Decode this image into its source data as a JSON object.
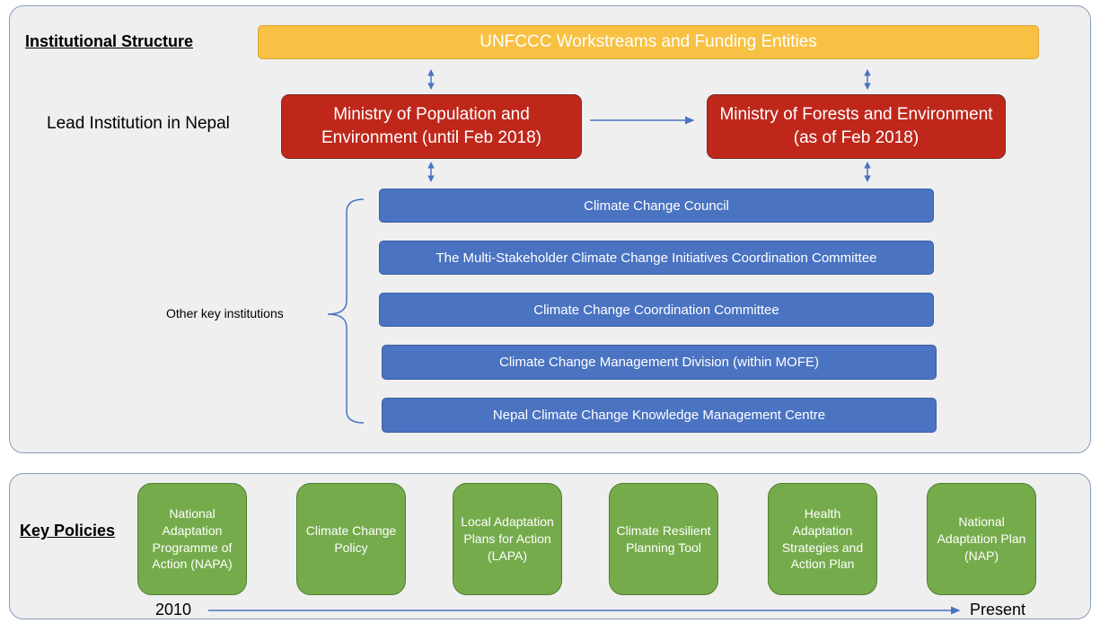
{
  "header": {
    "title": "Institutional Structure"
  },
  "top_bar": "UNFCCC Workstreams and Funding Entities",
  "lead_label": "Lead Institution in Nepal",
  "ministries": [
    "Ministry of Population and Environment (until Feb 2018)",
    "Ministry of Forests and Environment (as of Feb 2018)"
  ],
  "other_label": "Other key institutions",
  "institutions": [
    "Climate Change Council",
    "The Multi-Stakeholder Climate Change Initiatives Coordination Committee",
    "Climate Change Coordination Committee",
    "Climate Change Management Division (within MOFE)",
    "Nepal Climate Change Knowledge Management Centre"
  ],
  "policies_label": "Key Policies",
  "policies": [
    "National Adaptation Programme of Action (NAPA)",
    "Climate Change Policy",
    "Local Adaptation Plans for Action (LAPA)",
    "Climate Resilient Planning Tool",
    "Health Adaptation Strategies and Action Plan",
    "National Adaptation Plan (NAP)"
  ],
  "timeline": {
    "start": "2010",
    "end": "Present"
  }
}
